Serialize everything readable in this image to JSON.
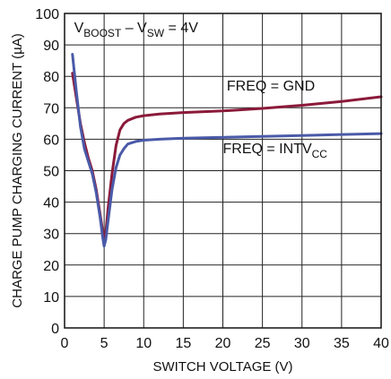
{
  "chart_data": {
    "type": "line",
    "title": "",
    "xlabel": "SWITCH VOLTAGE (V)",
    "ylabel": "CHARGE PUMP CHARGING CURRENT (µA)",
    "xlim": [
      0,
      40
    ],
    "ylim": [
      0,
      100
    ],
    "xticks": [
      0,
      5,
      10,
      15,
      20,
      25,
      30,
      35,
      40
    ],
    "yticks": [
      0,
      10,
      20,
      30,
      40,
      50,
      60,
      70,
      80,
      90,
      100
    ],
    "grid": true,
    "condition": {
      "parts": [
        {
          "text": "V",
          "sub": false
        },
        {
          "text": "BOOST",
          "sub": true
        },
        {
          "text": " – V",
          "sub": false
        },
        {
          "text": "SW",
          "sub": true
        },
        {
          "text": " = 4V",
          "sub": false
        }
      ]
    },
    "series": [
      {
        "name": "FREQ = GND",
        "label_parts": [
          {
            "text": "FREQ = GND",
            "sub": false
          }
        ],
        "label_at": [
          20.5,
          75.5
        ],
        "color": "#8b1a3a",
        "x": [
          1,
          1.5,
          2,
          2.5,
          3,
          3.5,
          4,
          4.5,
          4.8,
          5,
          5.2,
          5.5,
          6,
          6.5,
          7,
          7.5,
          8,
          9,
          10,
          12,
          15,
          20,
          25,
          30,
          35,
          40
        ],
        "y": [
          81,
          73,
          65,
          59,
          54,
          50,
          44,
          36,
          31,
          28,
          30,
          38,
          49,
          58,
          63,
          65,
          66,
          67,
          67.5,
          68,
          68.5,
          69,
          69.8,
          70.8,
          72,
          73.5
        ]
      },
      {
        "name": "FREQ = INTVCC",
        "label_parts": [
          {
            "text": "FREQ = INTV",
            "sub": false
          },
          {
            "text": "CC",
            "sub": true
          }
        ],
        "label_at": [
          20,
          55.5
        ],
        "color": "#4a5aa8",
        "x": [
          1,
          1.5,
          2,
          2.5,
          3,
          3.5,
          4,
          4.5,
          4.8,
          5,
          5.2,
          5.5,
          6,
          6.5,
          7,
          7.5,
          8,
          9,
          10,
          12,
          15,
          20,
          25,
          30,
          35,
          40
        ],
        "y": [
          87,
          75,
          64,
          57,
          53,
          49,
          43,
          35,
          29,
          26,
          28,
          34,
          44,
          51,
          55,
          57,
          58.5,
          59.3,
          59.7,
          60,
          60.3,
          60.6,
          60.9,
          61.2,
          61.5,
          61.8
        ]
      }
    ]
  }
}
